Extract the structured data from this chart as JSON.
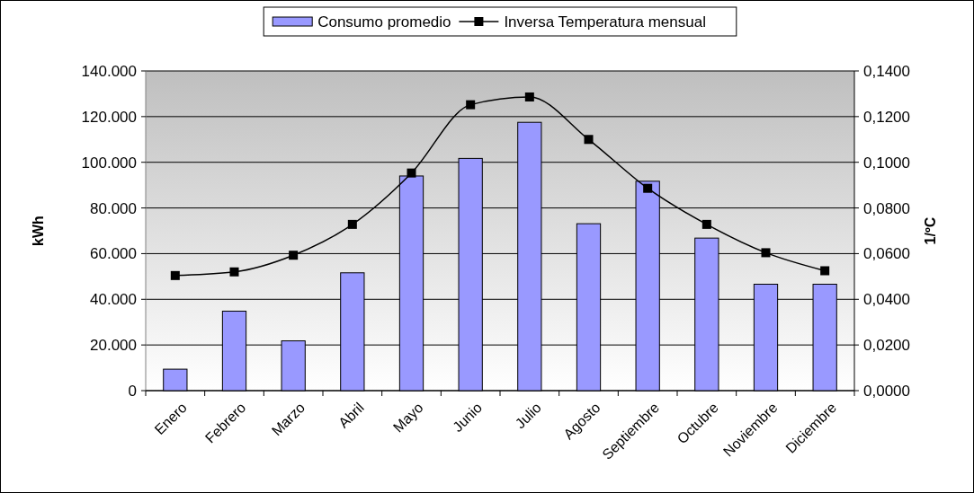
{
  "chart_data": {
    "type": "bar",
    "ylabel": "kWh",
    "y2label": "1/ºC",
    "categories": [
      "Enero",
      "Febrero",
      "Marzo",
      "Abril",
      "Mayo",
      "Junio",
      "Julio",
      "Agosto",
      "Septiembre",
      "Octubre",
      "Noviembre",
      "Diciembre"
    ],
    "series": [
      {
        "name": "Consumo promedio",
        "color": "#9999ff",
        "values": [
          9400,
          34800,
          21800,
          51600,
          94000,
          101700,
          117500,
          73100,
          91700,
          66800,
          46600,
          46600
        ]
      },
      {
        "name": "Inversa Temperatura mensual",
        "type": "line",
        "axis": "y2",
        "color": "#000000",
        "marker": "square",
        "values": [
          0.0504,
          0.052,
          0.0593,
          0.0728,
          0.0953,
          0.1252,
          0.1286,
          0.11,
          0.0886,
          0.0728,
          0.0604,
          0.0525
        ]
      }
    ],
    "ylim": [
      0,
      140000
    ],
    "yticks": [
      {
        "value": 0,
        "label": "0"
      },
      {
        "value": 20000,
        "label": "20.000"
      },
      {
        "value": 40000,
        "label": "40.000"
      },
      {
        "value": 60000,
        "label": "60.000"
      },
      {
        "value": 80000,
        "label": "80.000"
      },
      {
        "value": 100000,
        "label": "100.000"
      },
      {
        "value": 120000,
        "label": "120.000"
      },
      {
        "value": 140000,
        "label": "140.000"
      }
    ],
    "y2lim": [
      0,
      0.14
    ],
    "y2ticks": [
      {
        "value": 0,
        "label": "0,0000"
      },
      {
        "value": 0.02,
        "label": "0,0200"
      },
      {
        "value": 0.04,
        "label": "0,0400"
      },
      {
        "value": 0.06,
        "label": "0,0600"
      },
      {
        "value": 0.08,
        "label": "0,0800"
      },
      {
        "value": 0.1,
        "label": "0,1000"
      },
      {
        "value": 0.12,
        "label": "0,1200"
      },
      {
        "value": 0.14,
        "label": "0,1400"
      }
    ],
    "grid": "y",
    "legend": "top"
  }
}
